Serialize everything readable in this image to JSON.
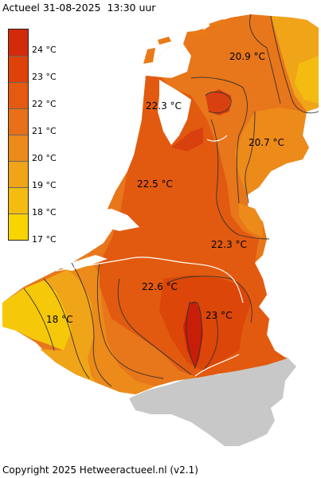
{
  "header": {
    "title": "Actueel 31-08-2025  13:30 uur"
  },
  "footer": {
    "copyright": "Copyright 2025 Hetweeractueel.nl (v2.1)"
  },
  "legend": {
    "items": [
      {
        "label": "24 °C",
        "color": "#d42a0c"
      },
      {
        "label": "23 °C",
        "color": "#df4208"
      },
      {
        "label": "22 °C",
        "color": "#e45a10"
      },
      {
        "label": "21 °C",
        "color": "#e87018"
      },
      {
        "label": "20 °C",
        "color": "#ec8a1a"
      },
      {
        "label": "19 °C",
        "color": "#f0a418"
      },
      {
        "label": "18 °C",
        "color": "#f4bc10"
      },
      {
        "label": "17 °C",
        "color": "#f8d400"
      }
    ]
  },
  "map": {
    "no_data_color": "#c8c8c8",
    "temperature_labels": [
      {
        "text": "20.9 °C",
        "value": 20.9
      },
      {
        "text": "22.3 °C",
        "value": 22.3
      },
      {
        "text": "20.7 °C",
        "value": 20.7
      },
      {
        "text": "22.5 °C",
        "value": 22.5
      },
      {
        "text": "22.3 °C",
        "value": 22.3
      },
      {
        "text": "22.6 °C",
        "value": 22.6
      },
      {
        "text": "23 °C",
        "value": 23
      },
      {
        "text": "18 °C",
        "value": 18
      }
    ]
  }
}
